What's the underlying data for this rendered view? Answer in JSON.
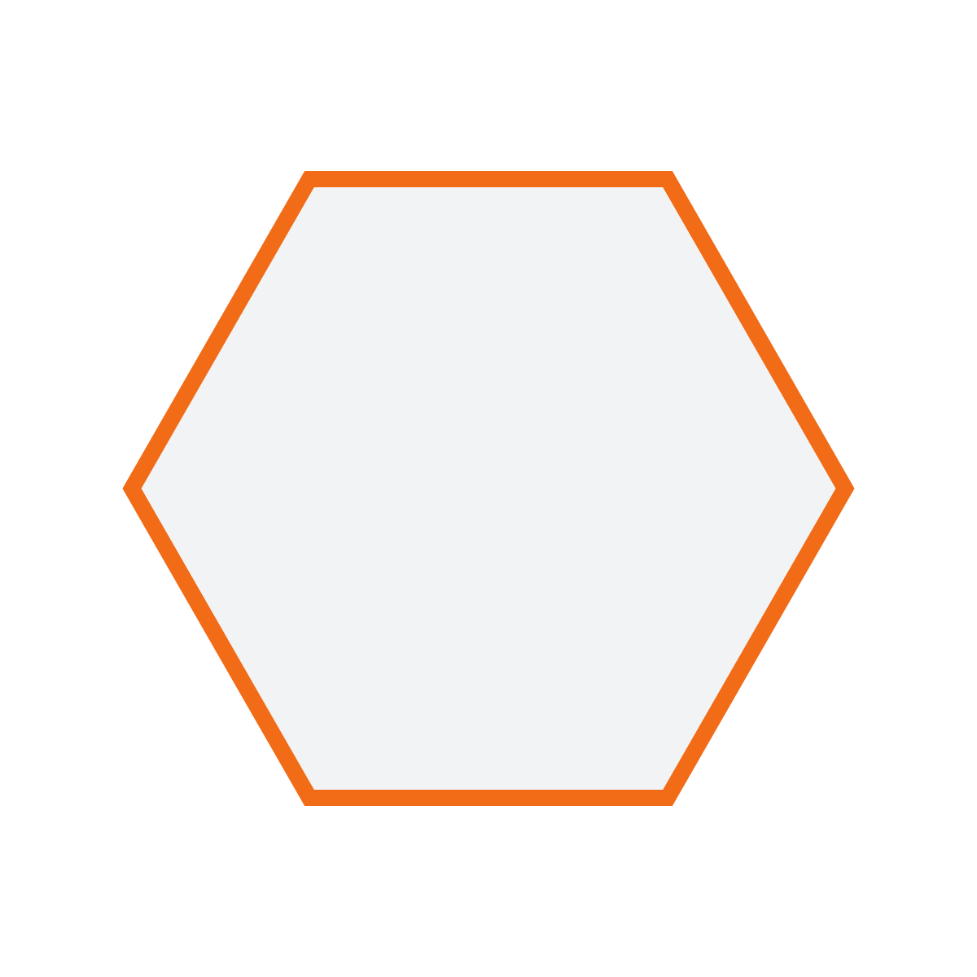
{
  "canvas": {
    "background_color": "#ffffff"
  },
  "shape": {
    "kind": "hexagon",
    "orientation": "flat-top",
    "fill_color": "#f2f3f5",
    "stroke_color": "#f26b16"
  }
}
